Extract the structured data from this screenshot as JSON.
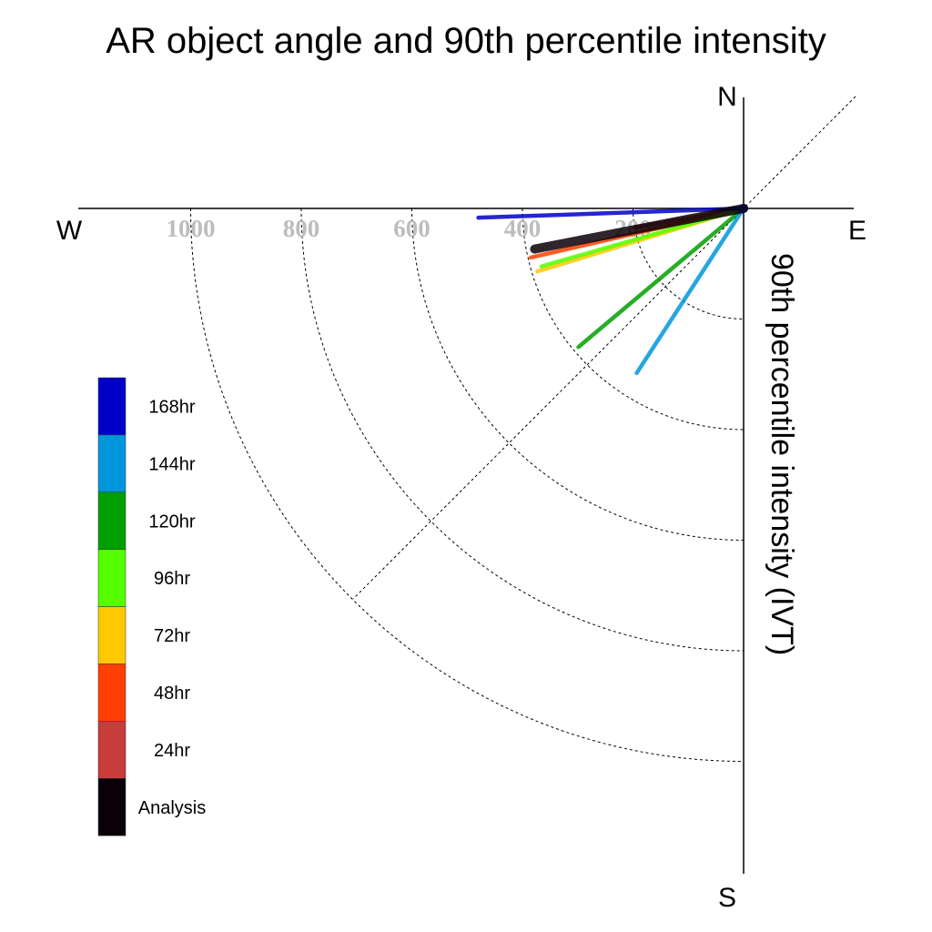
{
  "chart_data": {
    "type": "polar-vector",
    "title": "AR object angle and 90th percentile intensity",
    "ylabel": "90th percentile intensity (IVT)",
    "compass": {
      "north": "N",
      "south": "S",
      "east": "E",
      "west": "W"
    },
    "radial_ticks": [
      200,
      400,
      600,
      800,
      1000
    ],
    "rlim": [
      0,
      1200
    ],
    "series": [
      {
        "name": "168hr",
        "color": "#0000c8",
        "angle_deg_from_west": 2,
        "intensity": 480
      },
      {
        "name": "144hr",
        "color": "#0096dc",
        "angle_deg_from_west": 57,
        "intensity": 355
      },
      {
        "name": "120hr",
        "color": "#00a000",
        "angle_deg_from_west": 40,
        "intensity": 390
      },
      {
        "name": "96hr",
        "color": "#55ff00",
        "angle_deg_from_west": 16,
        "intensity": 380
      },
      {
        "name": "72hr",
        "color": "#ffc800",
        "angle_deg_from_west": 17,
        "intensity": 390
      },
      {
        "name": "48hr",
        "color": "#ff4000",
        "angle_deg_from_west": 13,
        "intensity": 395
      },
      {
        "name": "24hr",
        "color": "#c83c3c",
        "angle_deg_from_west": 10,
        "intensity": 200
      },
      {
        "name": "Analysis",
        "color": "#0a0008",
        "angle_deg_from_west": 11,
        "intensity": 385
      }
    ],
    "legend_position": "left",
    "grid": "dashed"
  }
}
